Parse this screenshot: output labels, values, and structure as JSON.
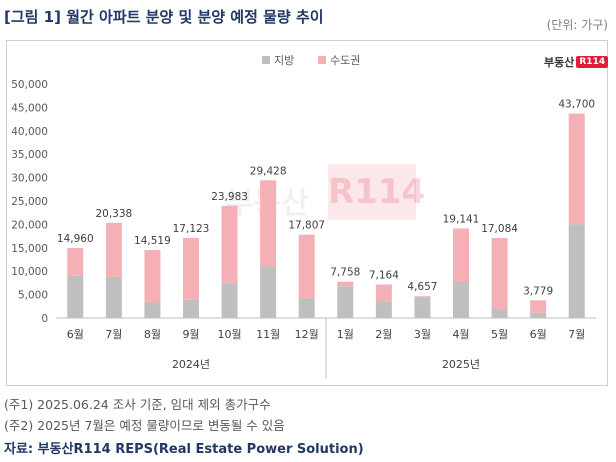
{
  "title": "[그림 1] 월간 아파트 분양 및 분양 예정 물량 추이",
  "unit_label": "(단위: 가구)",
  "logo": {
    "brand": "부동산",
    "mark": "R114"
  },
  "watermark": {
    "brand": "부동산",
    "mark": "R114"
  },
  "notes": [
    "(주1) 2025.06.24 조사 기준, 임대 제외 총가구수",
    "(주2) 2025년 7월은 예정 물량이므로 변동될 수 있음"
  ],
  "source": "자료: 부동산R114 REPS(Real Estate Power Solution)",
  "colors": {
    "region": "#bfbfbf",
    "capital": "#f4b0b4",
    "title": "#1f3864",
    "brand": "#e01e37"
  },
  "chart_data": {
    "type": "bar",
    "stacked": true,
    "categories": [
      "6월",
      "7월",
      "8월",
      "9월",
      "10월",
      "11월",
      "12월",
      "1월",
      "2월",
      "3월",
      "4월",
      "5월",
      "6월",
      "7월"
    ],
    "groups": [
      {
        "label": "2024년",
        "start": 0,
        "end": 6
      },
      {
        "label": "2025년",
        "start": 7,
        "end": 13
      }
    ],
    "series": [
      {
        "name": "지방",
        "values": [
          9000,
          8800,
          3300,
          3900,
          7400,
          11100,
          4200,
          6800,
          3400,
          4400,
          7800,
          1900,
          1100,
          20000
        ]
      },
      {
        "name": "수도권",
        "values": [
          5960,
          11538,
          11219,
          13223,
          16583,
          18328,
          13607,
          958,
          3764,
          257,
          11341,
          15184,
          2679,
          23700
        ]
      }
    ],
    "totals": [
      "14,960",
      "20,338",
      "14,519",
      "17,123",
      "23,983",
      "29,428",
      "17,807",
      "7,758",
      "7,164",
      "4,657",
      "19,141",
      "17,084",
      "3,779",
      "43,700"
    ],
    "total_values": [
      14960,
      20338,
      14519,
      17123,
      23983,
      29428,
      17807,
      7758,
      7164,
      4657,
      19141,
      17084,
      3779,
      43700
    ],
    "yticks": [
      "0",
      "5,000",
      "10,000",
      "15,000",
      "20,000",
      "25,000",
      "30,000",
      "35,000",
      "40,000",
      "45,000",
      "50,000"
    ],
    "ylim": [
      0,
      50000
    ],
    "legend_position": "top-center",
    "grid": false
  }
}
